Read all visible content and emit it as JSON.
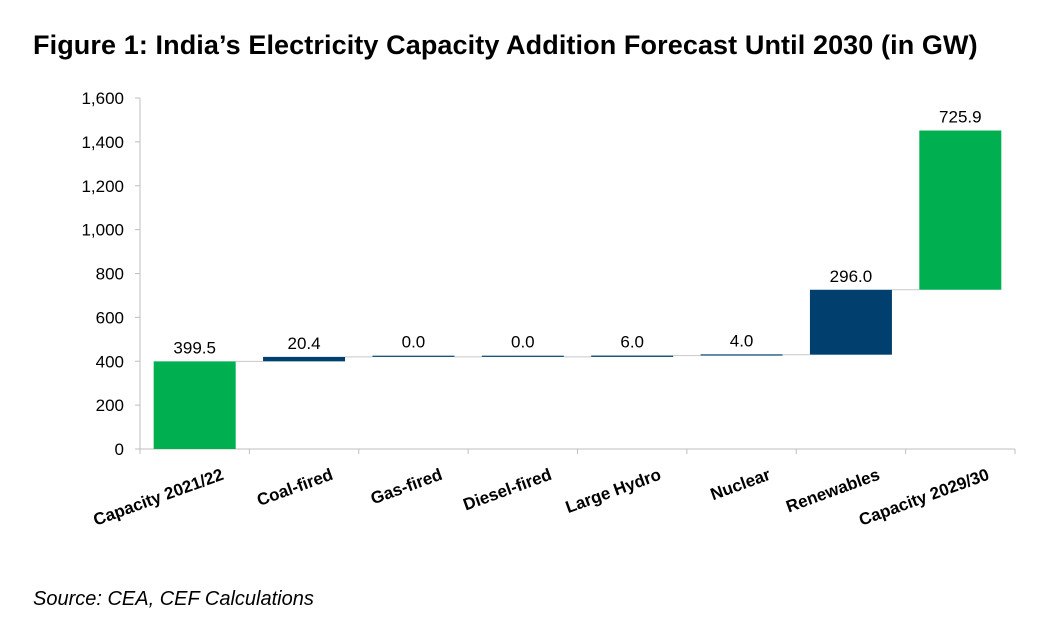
{
  "title": "Figure 1: India’s Electricity Capacity Addition Forecast Until 2030 (in GW)",
  "source": "Source: CEA, CEF Calculations",
  "colors": {
    "total": "#00B050",
    "increment": "#003F6E",
    "axis": "#BFBFBF",
    "connector": "#C8C8C8"
  },
  "chart_data": {
    "type": "bar",
    "subtype": "waterfall",
    "title": "Figure 1: India’s Electricity Capacity Addition Forecast Until 2030 (in GW)",
    "xlabel": "",
    "ylabel": "",
    "ylim": [
      0,
      1600
    ],
    "yticks": [
      0,
      200,
      400,
      600,
      800,
      1000,
      1200,
      1400,
      1600
    ],
    "ytick_labels": [
      "0",
      "200",
      "400",
      "600",
      "800",
      "1,000",
      "1,200",
      "1,400",
      "1,600"
    ],
    "grid": false,
    "legend": "none",
    "categories": [
      "Capacity 2021/22",
      "Coal-fired",
      "Gas-fired",
      "Diesel-fired",
      "Large Hydro",
      "Nuclear",
      "Renewables",
      "Capacity 2029/30"
    ],
    "values": [
      399.5,
      20.4,
      0.0,
      0.0,
      6.0,
      4.0,
      296.0,
      725.9
    ],
    "value_labels": [
      "399.5",
      "20.4",
      "0.0",
      "0.0",
      "6.0",
      "4.0",
      "296.0",
      "725.9"
    ],
    "kinds": [
      "total",
      "increment",
      "increment",
      "increment",
      "increment",
      "increment",
      "increment",
      "total"
    ]
  }
}
